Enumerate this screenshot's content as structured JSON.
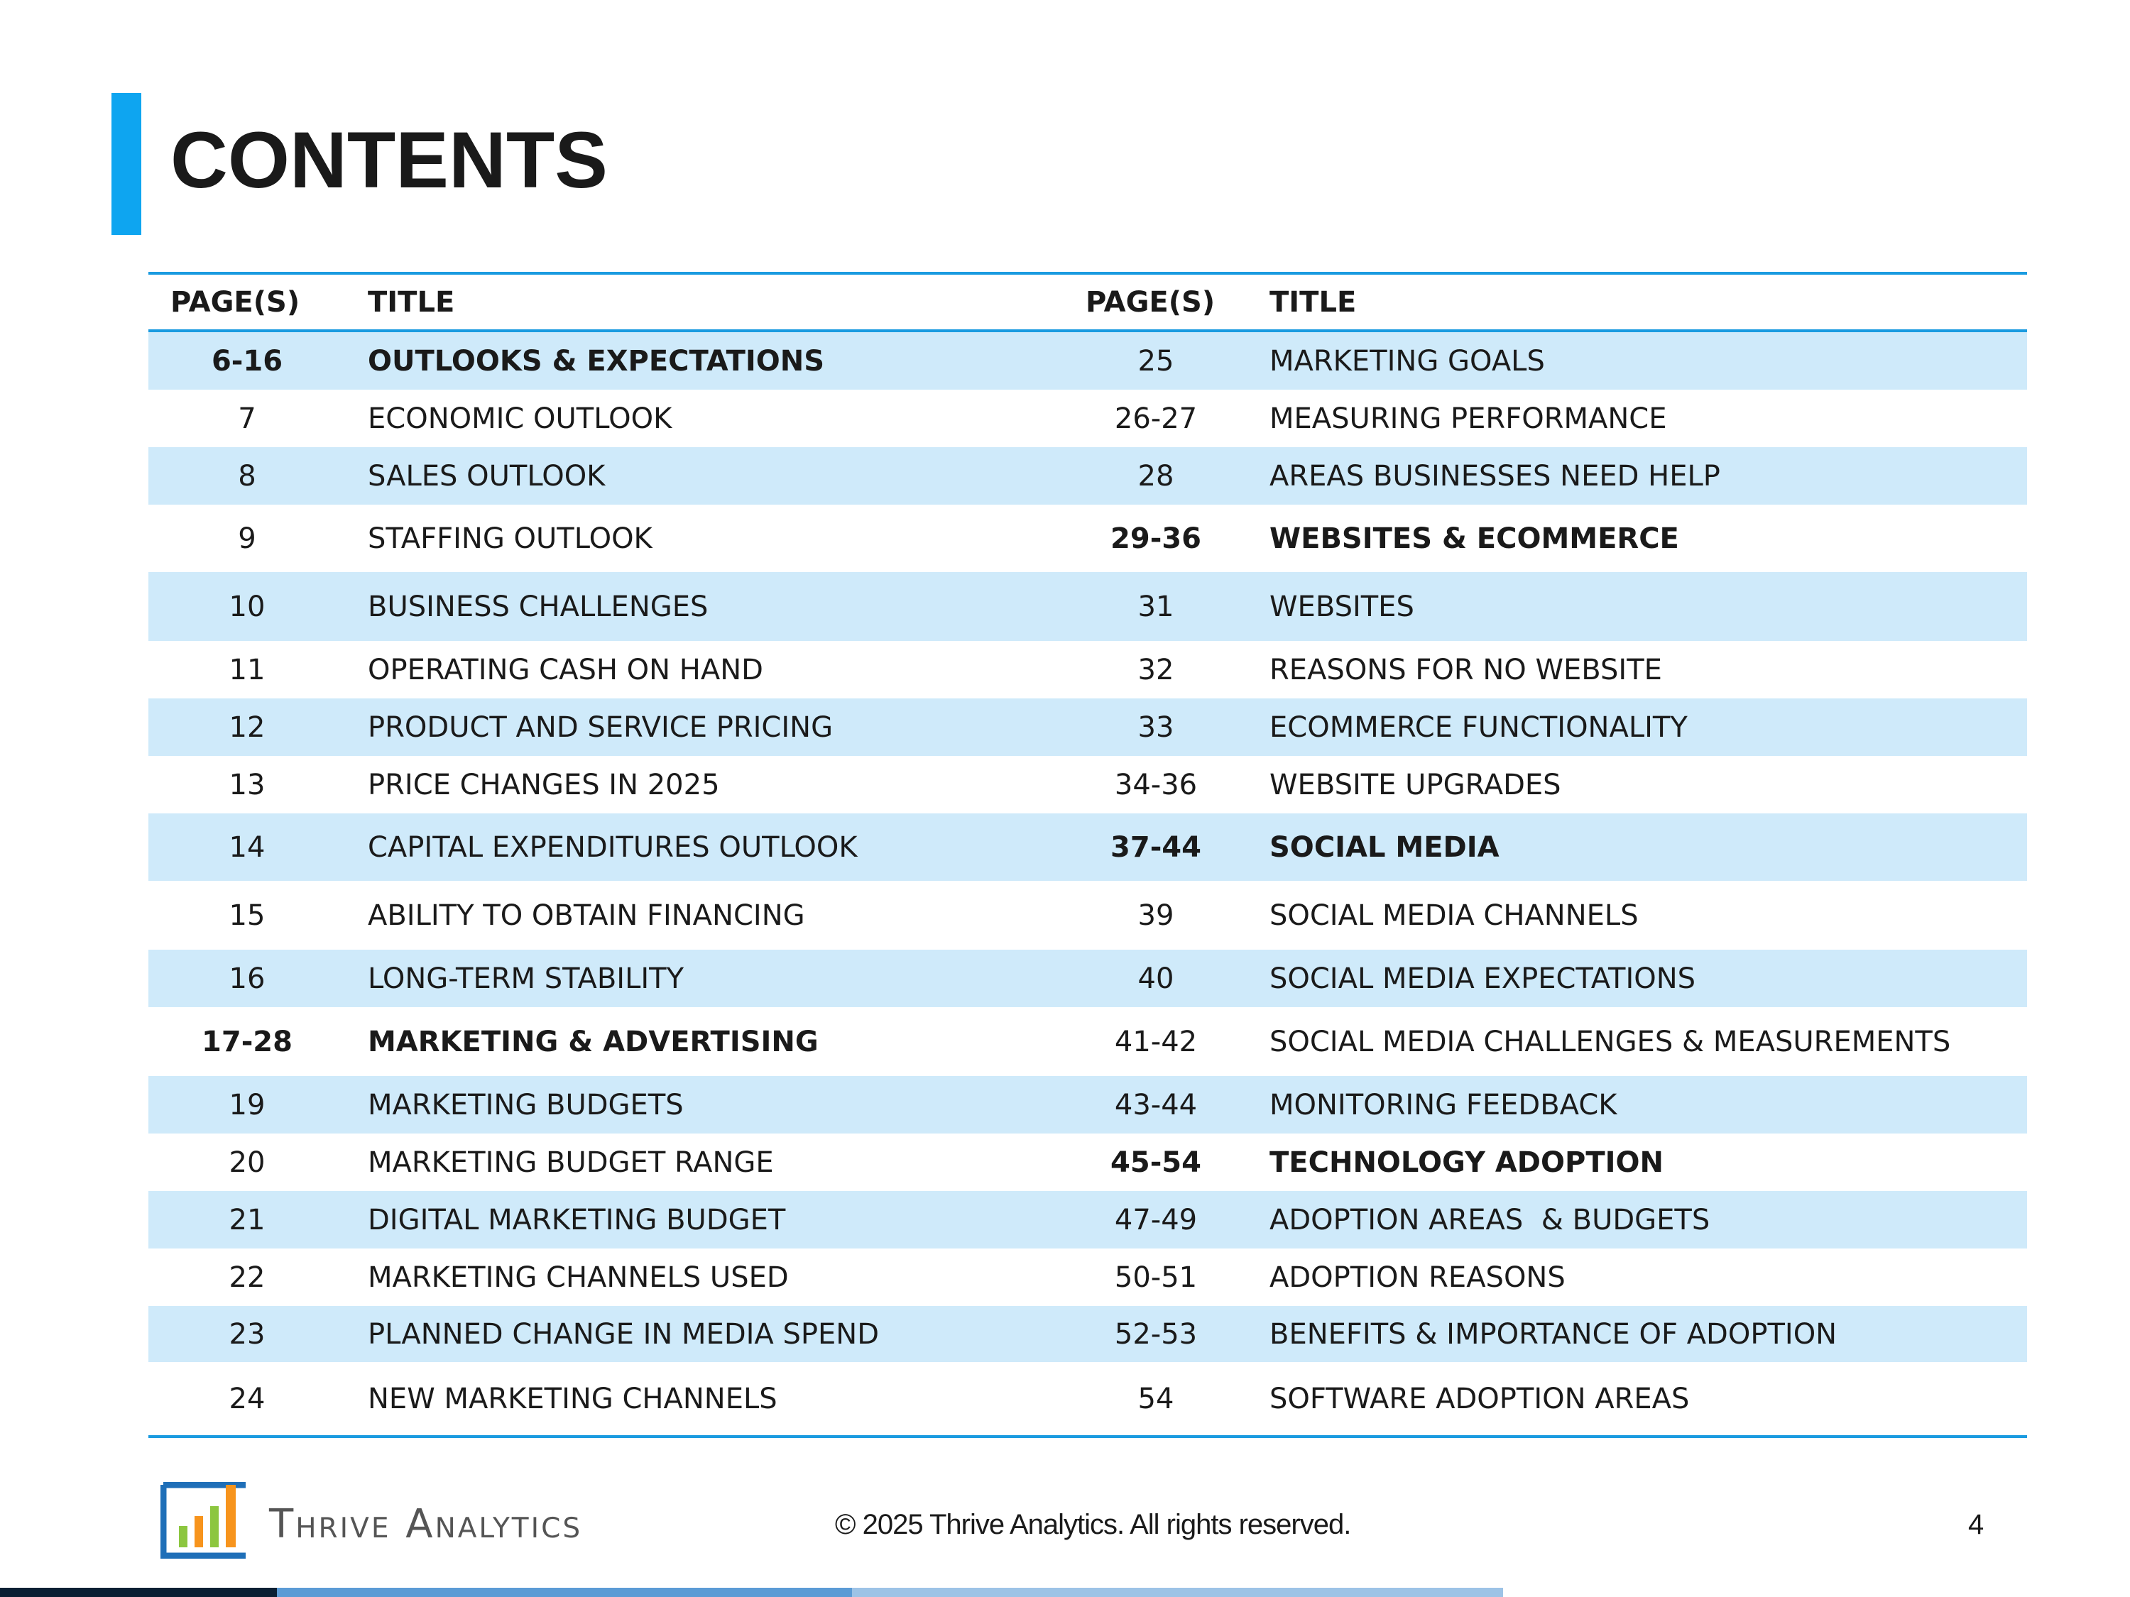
{
  "header": {
    "title": "CONTENTS"
  },
  "table": {
    "columns": [
      "PAGE(S)",
      "TITLE",
      "PAGE(S)",
      "TITLE"
    ],
    "rows": [
      [
        {
          "page": "6-16",
          "title": "OUTLOOKS & EXPECTATIONS",
          "section": true
        },
        {
          "page": "25",
          "title": "MARKETING GOALS"
        }
      ],
      [
        {
          "page": "7",
          "title": "ECONOMIC OUTLOOK"
        },
        {
          "page": "26-27",
          "title": "MEASURING PERFORMANCE"
        }
      ],
      [
        {
          "page": "8",
          "title": "SALES OUTLOOK"
        },
        {
          "page": "28",
          "title": "AREAS BUSINESSES NEED HELP"
        }
      ],
      [
        {
          "page": "9",
          "title": "STAFFING OUTLOOK"
        },
        {
          "page": "29-36",
          "title": "WEBSITES & ECOMMERCE",
          "section": true
        }
      ],
      [
        {
          "page": "10",
          "title": "BUSINESS CHALLENGES"
        },
        {
          "page": "31",
          "title": "WEBSITES"
        }
      ],
      [
        {
          "page": "11",
          "title": "OPERATING CASH ON HAND"
        },
        {
          "page": "32",
          "title": "REASONS FOR NO WEBSITE"
        }
      ],
      [
        {
          "page": "12",
          "title": "PRODUCT AND SERVICE PRICING"
        },
        {
          "page": "33",
          "title": "ECOMMERCE FUNCTIONALITY"
        }
      ],
      [
        {
          "page": "13",
          "title": "PRICE CHANGES IN 2025"
        },
        {
          "page": "34-36",
          "title": "WEBSITE UPGRADES"
        }
      ],
      [
        {
          "page": "14",
          "title": "CAPITAL EXPENDITURES OUTLOOK"
        },
        {
          "page": "37-44",
          "title": "SOCIAL MEDIA",
          "section": true
        }
      ],
      [
        {
          "page": "15",
          "title": "ABILITY TO OBTAIN FINANCING"
        },
        {
          "page": "39",
          "title": "SOCIAL MEDIA CHANNELS"
        }
      ],
      [
        {
          "page": "16",
          "title": "LONG-TERM STABILITY"
        },
        {
          "page": "40",
          "title": "SOCIAL MEDIA EXPECTATIONS"
        }
      ],
      [
        {
          "page": "17-28",
          "title": "MARKETING & ADVERTISING",
          "section": true
        },
        {
          "page": "41-42",
          "title": "SOCIAL MEDIA CHALLENGES & MEASUREMENTS"
        }
      ],
      [
        {
          "page": "19",
          "title": "MARKETING BUDGETS"
        },
        {
          "page": "43-44",
          "title": "MONITORING FEEDBACK"
        }
      ],
      [
        {
          "page": "20",
          "title": "MARKETING BUDGET RANGE"
        },
        {
          "page": "45-54",
          "title": "TECHNOLOGY ADOPTION",
          "section": true
        }
      ],
      [
        {
          "page": "21",
          "title": "DIGITAL MARKETING BUDGET"
        },
        {
          "page": "47-49",
          "title": "ADOPTION AREAS  & BUDGETS"
        }
      ],
      [
        {
          "page": "22",
          "title": "MARKETING CHANNELS USED"
        },
        {
          "page": "50-51",
          "title": "ADOPTION REASONS"
        }
      ],
      [
        {
          "page": "23",
          "title": "PLANNED CHANGE IN MEDIA SPEND"
        },
        {
          "page": "52-53",
          "title": "BENEFITS & IMPORTANCE OF ADOPTION"
        }
      ],
      [
        {
          "page": "24",
          "title": "NEW MARKETING CHANNELS"
        },
        {
          "page": "54",
          "title": "SOFTWARE ADOPTION AREAS"
        }
      ]
    ]
  },
  "footer": {
    "brand": "Thrive Analytics",
    "copyright": "© 2025 Thrive Analytics. All rights reserved.",
    "page_number": "4"
  }
}
